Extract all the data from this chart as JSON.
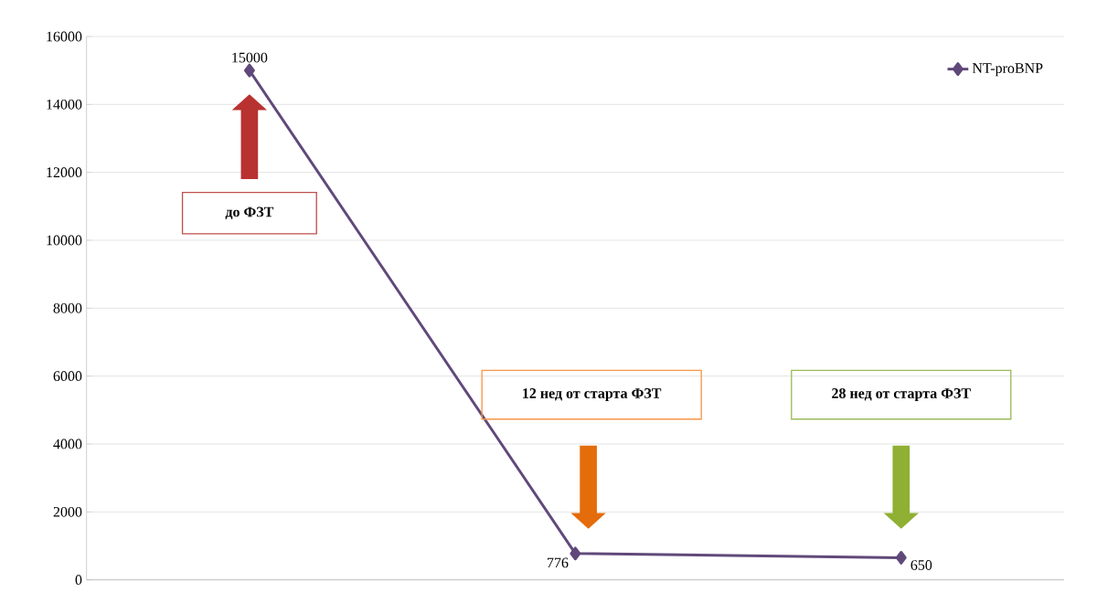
{
  "chart_data": {
    "type": "line",
    "categories": [
      null,
      null,
      null
    ],
    "series": [
      {
        "name": "NT-proBNP",
        "color": "#60497a",
        "values": [
          15000,
          776,
          650
        ]
      }
    ],
    "ylim": [
      0,
      16000
    ],
    "yticks": [
      0,
      2000,
      4000,
      6000,
      8000,
      10000,
      12000,
      14000,
      16000
    ],
    "grid": "y",
    "legend": "top right",
    "marker": "diamond",
    "line_style": "solid",
    "data_labels": true,
    "annotations": [
      "до ФЗТ",
      "12 нед от старта ФЗТ",
      "28 нед от старта ФЗТ"
    ]
  }
}
